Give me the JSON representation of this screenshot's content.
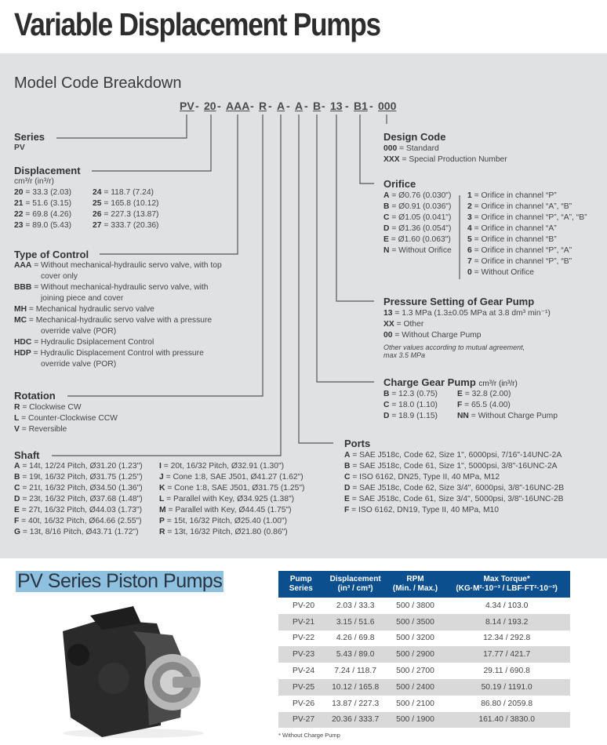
{
  "title": "Variable Displacement Pumps",
  "model_code_heading": "Model Code Breakdown",
  "model_code": {
    "segments": [
      "PV",
      "20",
      "AAA",
      "R",
      "A",
      "A",
      "B",
      "13",
      "B1",
      "000"
    ],
    "separator": "-"
  },
  "series": {
    "heading": "Series",
    "items": [
      "PV"
    ]
  },
  "displacement": {
    "heading": "Displacement",
    "unit": "cm³/r (in³/r)",
    "col1": [
      {
        "code": "20",
        "value": "= 33.3 (2.03)"
      },
      {
        "code": "21",
        "value": "= 51.6 (3.15)"
      },
      {
        "code": "22",
        "value": "= 69.8 (4.26)"
      },
      {
        "code": "23",
        "value": "= 89.0 (5.43)"
      }
    ],
    "col2": [
      {
        "code": "24",
        "value": "= 118.7 (7.24)"
      },
      {
        "code": "25",
        "value": "= 165.8 (10.12)"
      },
      {
        "code": "26",
        "value": "= 227.3 (13.87)"
      },
      {
        "code": "27",
        "value": "= 333.7 (20.36)"
      }
    ]
  },
  "control": {
    "heading": "Type of Control",
    "items": [
      {
        "code": "AAA",
        "value": "= Without mechanical-hydraulic servo valve, with top",
        "cont": "cover only"
      },
      {
        "code": "BBB",
        "value": "= Without mechanical-hydraulic servo valve, with",
        "cont": "joining piece and cover"
      },
      {
        "code": "MH",
        "value": "= Mechanical hydraulic servo valve"
      },
      {
        "code": "MC",
        "value": "= Mechanical-hydraulic servo valve with a pressure",
        "cont": "override valve (POR)"
      },
      {
        "code": "HDC",
        "value": "= Hydraulic Dsiplacement Control"
      },
      {
        "code": "HDP",
        "value": "= Hydraulic Displacement Control with pressure",
        "cont": "override valve (POR)"
      }
    ]
  },
  "rotation": {
    "heading": "Rotation",
    "items": [
      {
        "code": "R",
        "value": "= Clockwise CW"
      },
      {
        "code": "L",
        "value": "= Counter-Clockwise CCW"
      },
      {
        "code": "V",
        "value": "= Reversible"
      }
    ]
  },
  "shaft": {
    "heading": "Shaft",
    "col1": [
      {
        "code": "A",
        "value": "= 14t, 12/24 Pitch, Ø31.20 (1.23\")"
      },
      {
        "code": "B",
        "value": "= 19t, 16/32 Pitch, Ø31.75 (1.25\")"
      },
      {
        "code": "C",
        "value": "= 21t, 16/32 Pitch, Ø34.50 (1.36\")"
      },
      {
        "code": "D",
        "value": "= 23t, 16/32 Pitch, Ø37.68 (1.48\")"
      },
      {
        "code": "E",
        "value": "= 27t, 16/32 Pitch, Ø44.03 (1.73\")"
      },
      {
        "code": "F",
        "value": "= 40t, 16/32 Pitch, Ø64.66 (2.55\")"
      },
      {
        "code": "G",
        "value": "= 13t, 8/16 Pitch, Ø43.71 (1.72\")"
      }
    ],
    "col2": [
      {
        "code": "I",
        "value": "= 20t, 16/32 Pitch, Ø32.91 (1.30\")"
      },
      {
        "code": "J",
        "value": "= Cone 1:8, SAE J501, Ø41.27 (1.62\")"
      },
      {
        "code": "K",
        "value": "= Cone 1:8, SAE J501, Ø31.75 (1.25\")"
      },
      {
        "code": "L",
        "value": "= Parallel with Key, Ø34.925 (1.38\")"
      },
      {
        "code": "M",
        "value": "= Parallel with Key, Ø44.45 (1.75\")"
      },
      {
        "code": "P",
        "value": "= 15t, 16/32 Pitch, Ø25.40 (1.00\")"
      },
      {
        "code": "R",
        "value": "= 13t, 16/32 Pitch, Ø21.80 (0.86\")"
      }
    ]
  },
  "design_code": {
    "heading": "Design Code",
    "items": [
      {
        "code": "000",
        "value": "= Standard"
      },
      {
        "code": "XXX",
        "value": "= Special Production Number"
      }
    ]
  },
  "orifice": {
    "heading": "Orifice",
    "col1": [
      {
        "code": "A",
        "value": "= Ø0.76 (0.030\")"
      },
      {
        "code": "B",
        "value": "= Ø0.91 (0.036\")"
      },
      {
        "code": "C",
        "value": "= Ø1.05 (0.041\")"
      },
      {
        "code": "D",
        "value": "= Ø1.36 (0.054\")"
      },
      {
        "code": "E",
        "value": "= Ø1.60 (0.063\")"
      },
      {
        "code": "N",
        "value": "= Without Orifice"
      }
    ],
    "col2": [
      {
        "code": "1",
        "value": "= Orifice in channel “P”"
      },
      {
        "code": "2",
        "value": "= Orifice in channel “A”, “B”"
      },
      {
        "code": "3",
        "value": "= Orifice in channel “P”, “A”, “B”"
      },
      {
        "code": "4",
        "value": "= Orifice in channel “A”"
      },
      {
        "code": "5",
        "value": "= Orifice in channel “B”"
      },
      {
        "code": "6",
        "value": "= Orifice in channel “P”, “A”"
      },
      {
        "code": "7",
        "value": "= Orifice in channel “P”, “B”"
      },
      {
        "code": "0",
        "value": "= Without Orifice"
      }
    ]
  },
  "pressure": {
    "heading": "Pressure Setting of Gear Pump",
    "items": [
      {
        "code": "13",
        "value": "= 1.3 MPa (1.3±0.05 MPa at 3.8 dm³ min⁻¹)"
      },
      {
        "code": "XX",
        "value": "= Other"
      },
      {
        "code": "00",
        "value": "= Without Charge Pump"
      }
    ],
    "note1": "Other values according to mutual agreement,",
    "note2": "max 3.5 MPa"
  },
  "charge": {
    "heading": "Charge Gear Pump",
    "unit": "cm³/r (in³/r)",
    "col1": [
      {
        "code": "B",
        "value": "= 12.3 (0.75)"
      },
      {
        "code": "C",
        "value": "= 18.0 (1.10)"
      },
      {
        "code": "D",
        "value": "= 18.9 (1.15)"
      }
    ],
    "col2": [
      {
        "code": "E",
        "value": "= 32.8 (2.00)"
      },
      {
        "code": "F",
        "value": "= 65.5 (4.00)"
      },
      {
        "code": "NN",
        "value": "= Without Charge Pump"
      }
    ]
  },
  "ports": {
    "heading": "Ports",
    "items": [
      {
        "code": "A",
        "value": "= SAE J518c, Code 62, Size 1\", 6000psi, 7/16\"-14UNC-2A"
      },
      {
        "code": "B",
        "value": "= SAE J518c, Code 61, Size 1\", 5000psi, 3/8\"-16UNC-2A"
      },
      {
        "code": "C",
        "value": "= ISO 6162, DN25, Type II, 40 MPa, M12"
      },
      {
        "code": "D",
        "value": "= SAE J518c, Code 62, Size 3/4\", 6000psi, 3/8\"-16UNC-2B"
      },
      {
        "code": "E",
        "value": "= SAE J518c, Code 61, Size 3/4\", 5000psi, 3/8\"-16UNC-2B"
      },
      {
        "code": "F",
        "value": "= ISO 6162, DN19, Type II, 40 MPa, M10"
      }
    ]
  },
  "pv_title": "PV Series Piston Pumps",
  "table": {
    "headers": [
      [
        "Pump",
        "Series"
      ],
      [
        "Displacement",
        "(in³ / cm³)"
      ],
      [
        "RPM",
        "(Min. / Max.)"
      ],
      [
        "Max Torque*",
        "(KG·M²·10⁻³ / LBF·FT²·10⁻³)"
      ]
    ],
    "rows": [
      [
        "PV-20",
        "2.03 / 33.3",
        "500 / 3800",
        "4.34 / 103.0"
      ],
      [
        "PV-21",
        "3.15 / 51.6",
        "500 / 3500",
        "8.14 / 193.2"
      ],
      [
        "PV-22",
        "4.26 / 69.8",
        "500 / 3200",
        "12.34 / 292.8"
      ],
      [
        "PV-23",
        "5.43 / 89.0",
        "500 / 2900",
        "17.77 / 421.7"
      ],
      [
        "PV-24",
        "7.24 / 118.7",
        "500 / 2700",
        "29.11 / 690.8"
      ],
      [
        "PV-25",
        "10.12 / 165.8",
        "500 / 2400",
        "50.19 / 1191.0"
      ],
      [
        "PV-26",
        "13.87 / 227.3",
        "500 / 2100",
        "86.80 / 2059.8"
      ],
      [
        "PV-27",
        "20.36 / 333.7",
        "500 / 1900",
        "161.40 / 3830.0"
      ]
    ],
    "footnote": "* Without Charge Pump"
  },
  "colors": {
    "panel": "#e0e1e3",
    "table_header": "#0b4f8f",
    "title_highlight": "#8ec0e0",
    "row_alt": "#d9d9d9"
  }
}
